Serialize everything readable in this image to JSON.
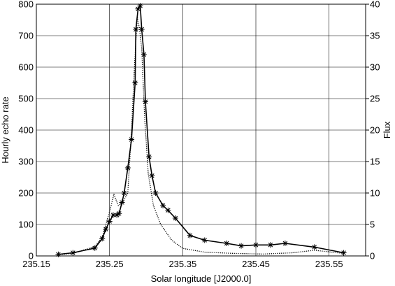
{
  "chart_data": {
    "type": "line",
    "title": "",
    "xlabel": "Solar longitude [J2000.0]",
    "ylabel": "Hourly echo rate",
    "y2label": "Flux",
    "xlim": [
      235.15,
      235.6
    ],
    "ylim": [
      0,
      800
    ],
    "y2lim": [
      0,
      40
    ],
    "xticks": [
      235.15,
      235.25,
      235.35,
      235.45,
      235.55
    ],
    "xtick_labels": [
      "235.15",
      "235.25",
      "235.35",
      "235.45",
      "235.55"
    ],
    "yticks": [
      0,
      100,
      200,
      300,
      400,
      500,
      600,
      700,
      800
    ],
    "ytick_labels": [
      "0",
      "100",
      "200",
      "300",
      "400",
      "500",
      "600",
      "700",
      "800"
    ],
    "y2ticks": [
      0,
      5,
      10,
      15,
      20,
      25,
      30,
      35,
      40
    ],
    "y2tick_labels": [
      "0",
      "5",
      "10",
      "15",
      "20",
      "25",
      "30",
      "35",
      "40"
    ],
    "grid": true,
    "series": [
      {
        "axis": "left",
        "style": "solid-with-asterisk-markers",
        "color": "#000000",
        "x": [
          235.18,
          235.2,
          235.23,
          235.24,
          235.245,
          235.25,
          235.255,
          235.26,
          235.263,
          235.267,
          235.27,
          235.275,
          235.28,
          235.285,
          235.286,
          235.289,
          235.292,
          235.294,
          235.297,
          235.299,
          235.304,
          235.308,
          235.313,
          235.323,
          235.33,
          235.34,
          235.36,
          235.38,
          235.41,
          235.43,
          235.45,
          235.47,
          235.49,
          235.53,
          235.57
        ],
        "y": [
          5,
          10,
          25,
          55,
          85,
          110,
          130,
          130,
          135,
          170,
          200,
          280,
          370,
          550,
          720,
          785,
          795,
          720,
          640,
          490,
          315,
          255,
          200,
          160,
          145,
          120,
          65,
          50,
          40,
          32,
          35,
          35,
          40,
          28,
          10
        ]
      },
      {
        "axis": "right",
        "style": "dotted",
        "color": "#000000",
        "x": [
          235.18,
          235.2,
          235.23,
          235.24,
          235.245,
          235.25,
          235.256,
          235.262,
          235.268,
          235.275,
          235.28,
          235.284,
          235.288,
          235.291,
          235.294,
          235.298,
          235.303,
          235.31,
          235.32,
          235.335,
          235.35,
          235.38,
          235.42,
          235.46,
          235.5,
          235.53,
          235.57
        ],
        "y": [
          0.2,
          0.4,
          1.5,
          3,
          5,
          7,
          9.8,
          8,
          8.5,
          10,
          20,
          30,
          38,
          36,
          33,
          22,
          13,
          8,
          5,
          2.5,
          1.2,
          0.6,
          0.4,
          0.3,
          0.5,
          0.9,
          0.4
        ]
      }
    ]
  }
}
